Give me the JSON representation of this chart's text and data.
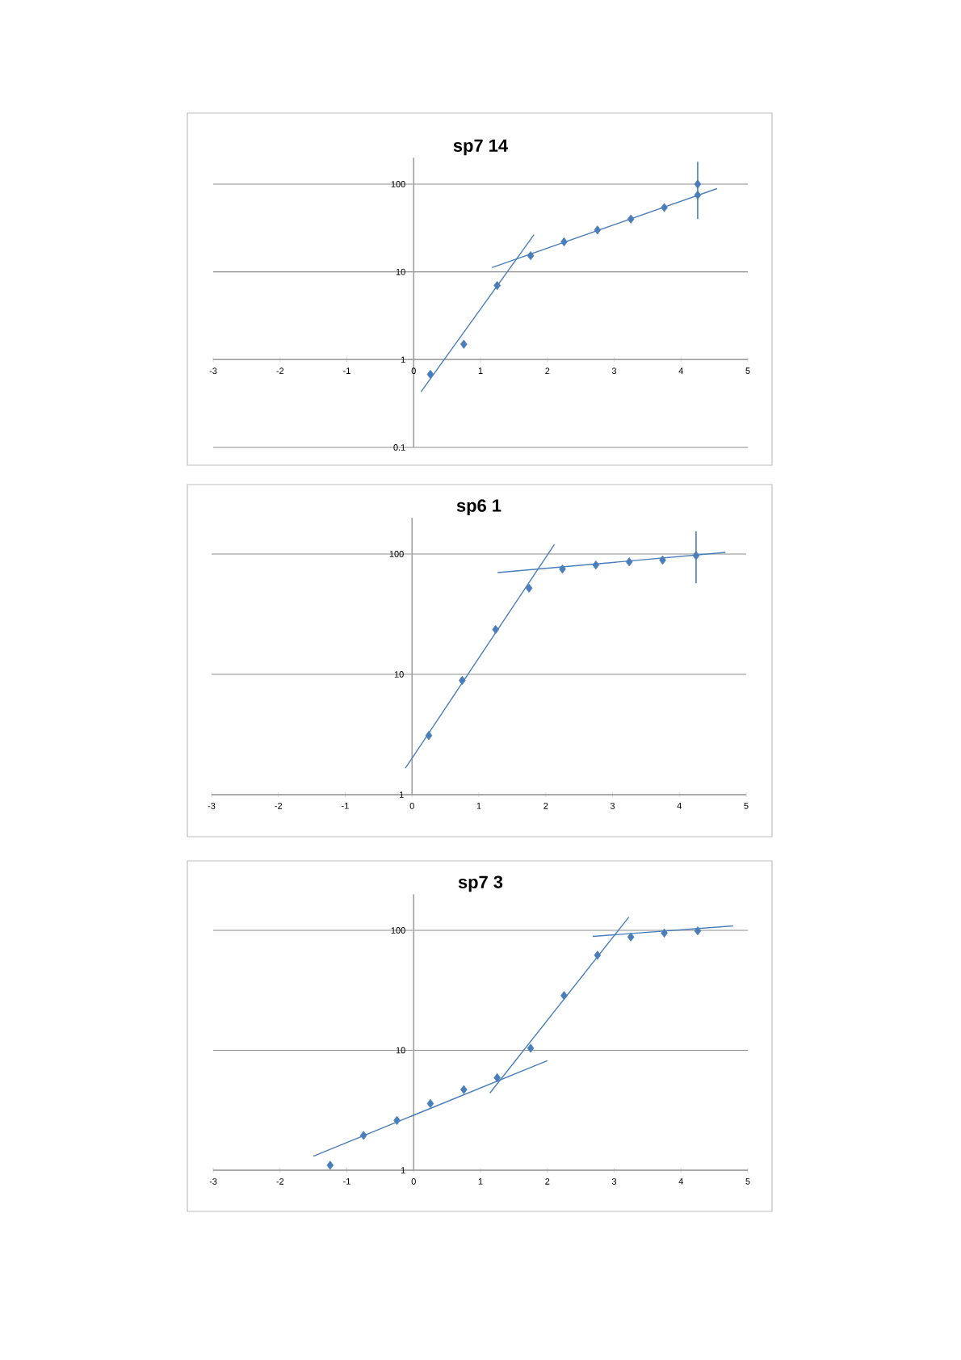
{
  "chart_data": [
    {
      "type": "scatter",
      "title": "sp7 14",
      "xlim": [
        -3,
        5
      ],
      "ylim": [
        0.1,
        200
      ],
      "xticks": [
        -3,
        -2,
        -1,
        0,
        1,
        2,
        3,
        4,
        5
      ],
      "yticks": [
        0.1,
        1,
        10,
        100
      ],
      "log": "y",
      "grid": "y",
      "marker": "diamond",
      "series": [
        {
          "type": "scatter",
          "color": "#4a7ebb",
          "x": [
            0.25,
            0.75,
            1.25,
            1.75,
            2.25,
            2.75,
            3.25,
            3.75,
            4.25,
            4.25
          ],
          "values": [
            0.68,
            1.5,
            7.0,
            15.3,
            22,
            30,
            40,
            54,
            75,
            100
          ],
          "errors": [
            null,
            null,
            null,
            null,
            null,
            null,
            null,
            null,
            null,
            [
              40,
              180
            ]
          ]
        },
        {
          "type": "line",
          "marker": "none",
          "color": "#4a7ebb",
          "x": [
            0.11,
            1.8
          ],
          "values": [
            0.43,
            26.5
          ]
        },
        {
          "type": "line",
          "marker": "none",
          "color": "#4a7ebb",
          "x": [
            1.17,
            4.54
          ],
          "values": [
            11.2,
            89
          ]
        }
      ]
    },
    {
      "type": "scatter",
      "title": "sp6 1",
      "xlim": [
        -3,
        5
      ],
      "ylim": [
        1,
        200
      ],
      "xticks": [
        -3,
        -2,
        -1,
        0,
        1,
        2,
        3,
        4,
        5
      ],
      "yticks": [
        1,
        10,
        100
      ],
      "log": "y",
      "grid": "y",
      "marker": "diamond",
      "series": [
        {
          "type": "scatter",
          "color": "#4a7ebb",
          "x": [
            0.25,
            0.75,
            1.25,
            1.75,
            2.25,
            2.75,
            3.25,
            3.75,
            4.25
          ],
          "values": [
            3.1,
            8.9,
            23.6,
            52,
            75,
            81,
            86,
            89,
            97
          ],
          "errors": [
            null,
            null,
            null,
            null,
            null,
            null,
            null,
            null,
            [
              57,
              154
            ]
          ]
        },
        {
          "type": "line",
          "marker": "none",
          "color": "#4a7ebb",
          "x": [
            -0.1,
            2.13
          ],
          "values": [
            1.66,
            120
          ]
        },
        {
          "type": "line",
          "marker": "none",
          "color": "#4a7ebb",
          "x": [
            1.28,
            4.69
          ],
          "values": [
            70,
            103
          ]
        }
      ]
    },
    {
      "type": "scatter",
      "title": "sp7 3",
      "xlim": [
        -3,
        5
      ],
      "ylim": [
        1,
        200
      ],
      "xticks": [
        -3,
        -2,
        -1,
        0,
        1,
        2,
        3,
        4,
        5
      ],
      "yticks": [
        1,
        10,
        100
      ],
      "log": "y",
      "grid": "y",
      "marker": "diamond",
      "series": [
        {
          "type": "scatter",
          "color": "#4a7ebb",
          "x": [
            -1.25,
            -0.75,
            -0.25,
            0.25,
            0.75,
            1.25,
            1.75,
            2.25,
            2.75,
            3.25,
            3.75,
            4.25
          ],
          "values": [
            1.1,
            1.95,
            2.6,
            3.6,
            4.7,
            5.9,
            10.4,
            28.6,
            62,
            88,
            95,
            99
          ]
        },
        {
          "type": "line",
          "marker": "none",
          "color": "#4a7ebb",
          "x": [
            -1.5,
            2.0
          ],
          "values": [
            1.31,
            8.2
          ]
        },
        {
          "type": "line",
          "marker": "none",
          "color": "#4a7ebb",
          "x": [
            1.14,
            3.22
          ],
          "values": [
            4.4,
            129
          ]
        },
        {
          "type": "line",
          "marker": "none",
          "color": "#4a7ebb",
          "x": [
            2.68,
            4.78
          ],
          "values": [
            89,
            109
          ]
        }
      ]
    }
  ]
}
